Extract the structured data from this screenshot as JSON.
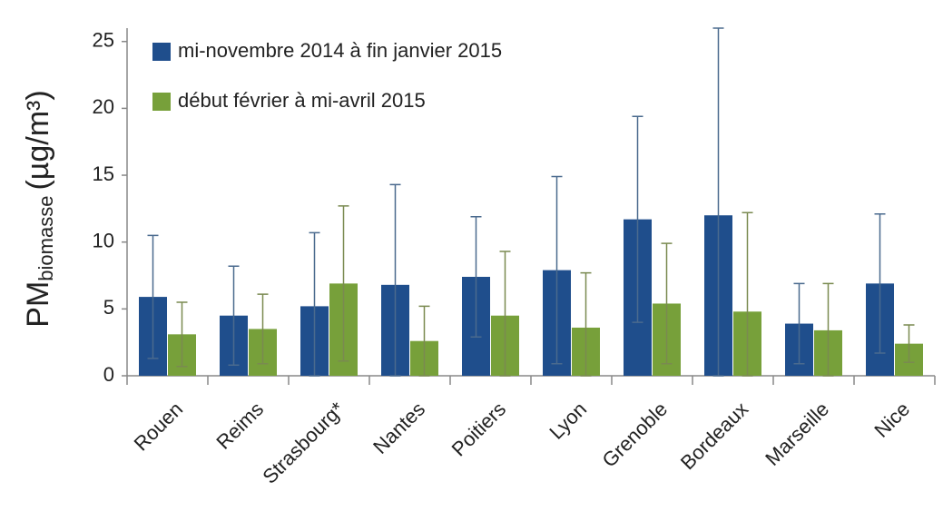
{
  "chart_data": {
    "type": "bar",
    "y_label": {
      "base": "PM",
      "subscript": "biomasse",
      "unit": "(µg/m³)"
    },
    "categories": [
      "Rouen",
      "Reims",
      "Strasbourg*",
      "Nantes",
      "Poitiers",
      "Lyon",
      "Grenoble",
      "Bordeaux",
      "Marseille",
      "Nice"
    ],
    "series": [
      {
        "name": "mi-novembre 2014 à fin janvier 2015",
        "color": "#1f4e8c",
        "error_color": "#4a6a8e",
        "values": [
          5.9,
          4.5,
          5.2,
          6.8,
          7.4,
          7.9,
          11.7,
          12.0,
          3.9,
          6.9
        ],
        "errors": [
          4.6,
          3.7,
          5.5,
          7.5,
          4.5,
          7.0,
          7.7,
          14.0,
          3.0,
          5.2
        ]
      },
      {
        "name": "début février à mi-avril 2015",
        "color": "#77a03a",
        "error_color": "#7a8a50",
        "values": [
          3.1,
          3.5,
          6.9,
          2.6,
          4.5,
          3.6,
          5.4,
          4.8,
          3.4,
          2.4
        ],
        "errors": [
          2.4,
          2.6,
          5.8,
          2.6,
          4.8,
          4.1,
          4.5,
          7.4,
          3.5,
          1.4
        ]
      }
    ],
    "ylim": [
      0,
      26
    ],
    "yticks": [
      0,
      5,
      10,
      15,
      20,
      25
    ],
    "grid": false,
    "legend": "top-left"
  }
}
